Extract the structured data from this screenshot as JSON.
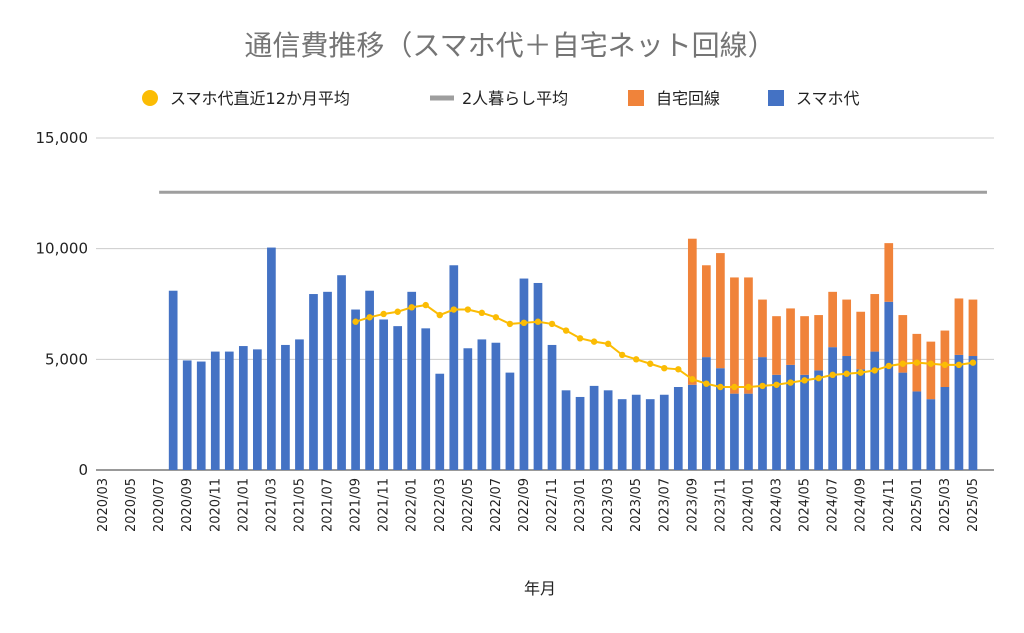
{
  "chart_data": {
    "type": "bar",
    "title": "通信費推移（スマホ代＋自宅ネット回線）",
    "xlabel": "年月",
    "ylabel": "",
    "ylim": [
      0,
      15000
    ],
    "yticks": [
      "0",
      "5,000",
      "10,000",
      "15,000"
    ],
    "grid": true,
    "legend_position": "top",
    "stacked": true,
    "categories": [
      "2020/03",
      "2020/04",
      "2020/05",
      "2020/06",
      "2020/07",
      "2020/08",
      "2020/09",
      "2020/10",
      "2020/11",
      "2020/12",
      "2021/01",
      "2021/02",
      "2021/03",
      "2021/04",
      "2021/05",
      "2021/06",
      "2021/07",
      "2021/08",
      "2021/09",
      "2021/10",
      "2021/11",
      "2021/12",
      "2022/01",
      "2022/02",
      "2022/03",
      "2022/04",
      "2022/05",
      "2022/06",
      "2022/07",
      "2022/08",
      "2022/09",
      "2022/10",
      "2022/11",
      "2022/12",
      "2023/01",
      "2023/02",
      "2023/03",
      "2023/04",
      "2023/05",
      "2023/06",
      "2023/07",
      "2023/08",
      "2023/09",
      "2023/10",
      "2023/11",
      "2023/12",
      "2024/01",
      "2024/02",
      "2024/03",
      "2024/04",
      "2024/05",
      "2024/06",
      "2024/07",
      "2024/08",
      "2024/09",
      "2024/10",
      "2024/11",
      "2024/12",
      "2025/01",
      "2025/02",
      "2025/03",
      "2025/04",
      "2025/05",
      "2025/06"
    ],
    "x_tick_labels": [
      "2020/03",
      "2020/05",
      "2020/07",
      "2020/09",
      "2020/11",
      "2021/01",
      "2021/03",
      "2021/05",
      "2021/07",
      "2021/09",
      "2021/11",
      "2022/01",
      "2022/03",
      "2022/05",
      "2022/07",
      "2022/09",
      "2022/11",
      "2023/01",
      "2023/03",
      "2023/05",
      "2023/07",
      "2023/09",
      "2023/11",
      "2024/01",
      "2024/03",
      "2024/05",
      "2024/07",
      "2024/09",
      "2024/11",
      "2025/01",
      "2025/03",
      "2025/05"
    ],
    "legend": [
      {
        "name": "スマホ代直近12か月平均",
        "color": "#fbbc04",
        "shape": "circle"
      },
      {
        "name": "2人暮らし平均",
        "color": "#9e9e9e",
        "shape": "line"
      },
      {
        "name": "自宅回線",
        "color": "#f0833a",
        "shape": "square"
      },
      {
        "name": "スマホ代",
        "color": "#4472c4",
        "shape": "square"
      }
    ],
    "series": [
      {
        "name": "スマホ代",
        "type": "bar",
        "color": "#4472c4",
        "values": [
          0,
          0,
          0,
          0,
          0,
          8100,
          4950,
          4900,
          5350,
          5350,
          5600,
          5450,
          10050,
          5650,
          5900,
          7950,
          8050,
          8800,
          7250,
          8100,
          6800,
          6500,
          8050,
          6400,
          4350,
          9250,
          5500,
          5900,
          5750,
          4400,
          8650,
          8450,
          5650,
          3600,
          3300,
          3800,
          3600,
          3200,
          3400,
          3200,
          3400,
          3750,
          3850,
          5100,
          4600,
          3450,
          3450,
          5100,
          4300,
          4750,
          4300,
          4500,
          5550,
          5150,
          4550,
          5350,
          7600,
          4400,
          3550,
          3200,
          3750,
          5200,
          5150,
          0
        ]
      },
      {
        "name": "自宅回線",
        "type": "bar",
        "color": "#f0833a",
        "values": [
          0,
          0,
          0,
          0,
          0,
          0,
          0,
          0,
          0,
          0,
          0,
          0,
          0,
          0,
          0,
          0,
          0,
          0,
          0,
          0,
          0,
          0,
          0,
          0,
          0,
          0,
          0,
          0,
          0,
          0,
          0,
          0,
          0,
          0,
          0,
          0,
          0,
          0,
          0,
          0,
          0,
          0,
          6600,
          4150,
          5200,
          5250,
          5250,
          2600,
          2650,
          2550,
          2650,
          2500,
          2500,
          2550,
          2600,
          2600,
          2650,
          2600,
          2600,
          2600,
          2550,
          2550,
          2550,
          0
        ]
      },
      {
        "name": "スマホ代直近12か月平均",
        "type": "line",
        "color": "#fbbc04",
        "values": [
          null,
          null,
          null,
          null,
          null,
          null,
          null,
          null,
          null,
          null,
          null,
          null,
          null,
          null,
          null,
          null,
          null,
          null,
          6700,
          6900,
          7050,
          7150,
          7350,
          7450,
          7000,
          7250,
          7250,
          7100,
          6900,
          6600,
          6650,
          6700,
          6600,
          6300,
          5950,
          5800,
          5700,
          5200,
          5000,
          4800,
          4600,
          4550,
          4100,
          3900,
          3750,
          3750,
          3750,
          3800,
          3850,
          3950,
          4050,
          4150,
          4300,
          4350,
          4400,
          4500,
          4700,
          4800,
          4850,
          4800,
          4750,
          4750,
          4850,
          null
        ]
      },
      {
        "name": "2人暮らし平均",
        "type": "line",
        "color": "#9e9e9e",
        "values": [
          null,
          null,
          null,
          null,
          12550,
          12550,
          12550,
          12550,
          12550,
          12550,
          12550,
          12550,
          12550,
          12550,
          12550,
          12550,
          12550,
          12550,
          12550,
          12550,
          12550,
          12550,
          12550,
          12550,
          12550,
          12550,
          12550,
          12550,
          12550,
          12550,
          12550,
          12550,
          12550,
          12550,
          12550,
          12550,
          12550,
          12550,
          12550,
          12550,
          12550,
          12550,
          12550,
          12550,
          12550,
          12550,
          12550,
          12550,
          12550,
          12550,
          12550,
          12550,
          12550,
          12550,
          12550,
          12550,
          12550,
          12550,
          12550,
          12550,
          12550,
          12550,
          12550,
          12550
        ]
      }
    ]
  }
}
